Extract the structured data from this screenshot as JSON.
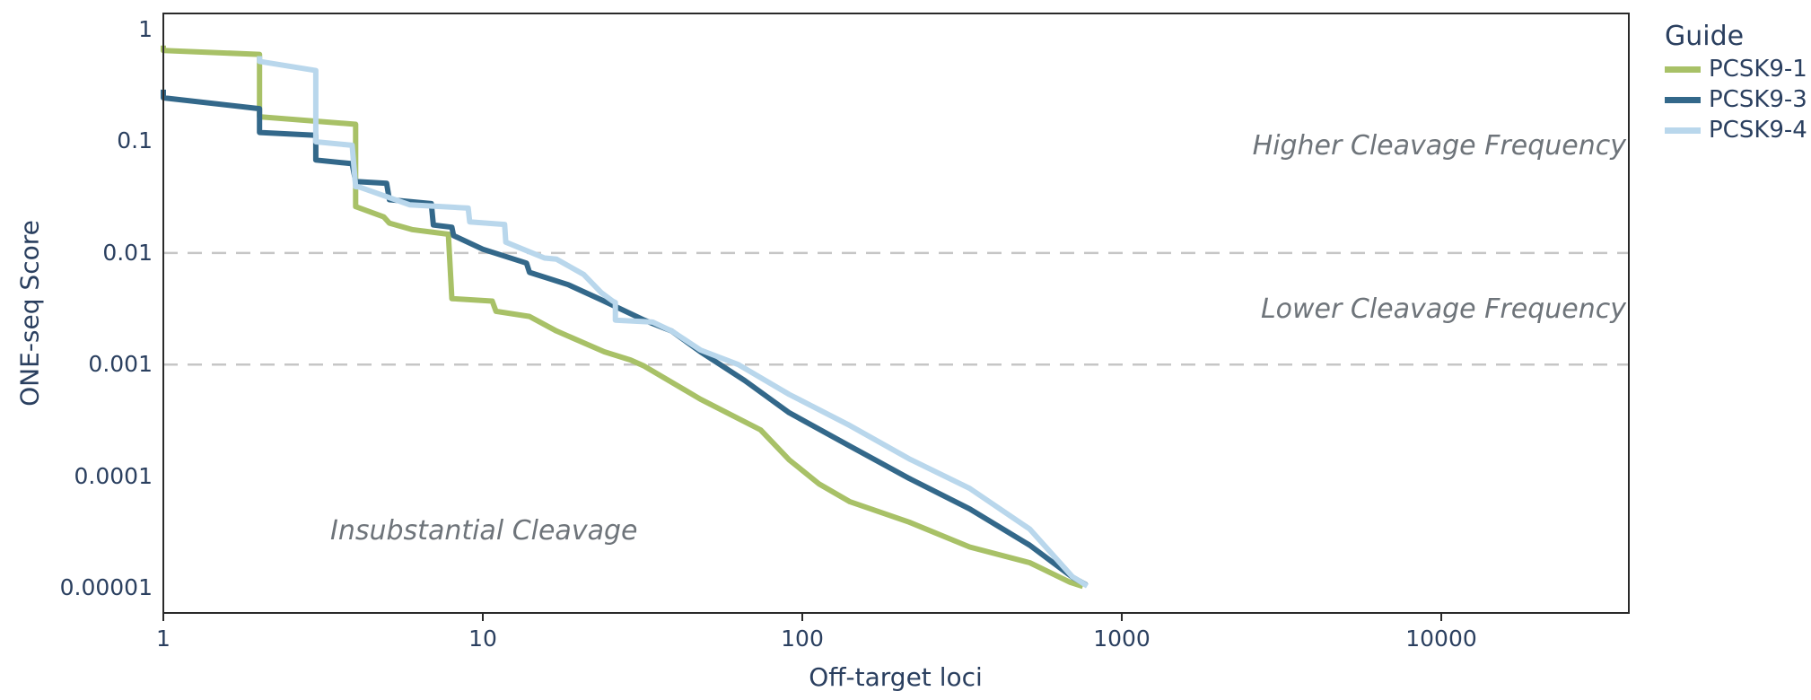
{
  "chart_data": {
    "type": "line",
    "title": "",
    "xlabel": "Off-target loci",
    "ylabel": "ONE-seq Score",
    "xscale": "log",
    "yscale": "log",
    "xlim_log": [
      0,
      4.587
    ],
    "ylim_log": [
      -5.225,
      0.145
    ],
    "grid": "off",
    "xticks": [
      {
        "value": 1,
        "label": "1"
      },
      {
        "value": 10,
        "label": "10"
      },
      {
        "value": 100,
        "label": "100"
      },
      {
        "value": 1000,
        "label": "1000"
      },
      {
        "value": 10000,
        "label": "10000"
      }
    ],
    "yticks": [
      {
        "value": 1,
        "label": "1"
      },
      {
        "value": 0.1,
        "label": "0.1"
      },
      {
        "value": 0.01,
        "label": "0.01"
      },
      {
        "value": 0.001,
        "label": "0.001"
      },
      {
        "value": 0.0001,
        "label": "0.0001"
      },
      {
        "value": 1e-05,
        "label": "0.00001"
      }
    ],
    "reference_lines": [
      {
        "y": 0.01,
        "style": "dashed",
        "color": "#c6c6c6"
      },
      {
        "y": 0.001,
        "style": "dashed",
        "color": "#c6c6c6"
      }
    ],
    "annotations": [
      {
        "text": "Higher Cleavage Frequency",
        "region": "above 0.01 line, right side"
      },
      {
        "text": "Lower Cleavage Frequency",
        "region": "between 0.01 and 0.001 lines, right side"
      },
      {
        "text": "Insubstantial Cleavage",
        "region": "below 0.001 line, left side"
      }
    ],
    "legend": {
      "title": "Guide",
      "position": "top-right-outside"
    },
    "colors": {
      "text": "#2a3f5f",
      "annotation": "#6e747a",
      "axis_line": "#2a2a2a",
      "reference_line": "#c6c6c6",
      "background": "#ffffff"
    },
    "series": [
      {
        "name": "PCSK9-1",
        "color": "#a8c167",
        "points": [
          [
            1,
            0.72
          ],
          [
            1,
            0.65
          ],
          [
            2,
            0.6
          ],
          [
            2,
            0.166
          ],
          [
            4,
            0.142
          ],
          [
            4,
            0.026
          ],
          [
            4.9,
            0.021
          ],
          [
            5.1,
            0.0185
          ],
          [
            6,
            0.0162
          ],
          [
            7.8,
            0.0147
          ],
          [
            8,
            0.0039
          ],
          [
            10.7,
            0.0037
          ],
          [
            11,
            0.003
          ],
          [
            14,
            0.0027
          ],
          [
            17,
            0.002
          ],
          [
            24,
            0.0013
          ],
          [
            29,
            0.0011
          ],
          [
            32,
            0.00097
          ],
          [
            48,
            0.00049
          ],
          [
            74,
            0.00026
          ],
          [
            91,
            0.00014
          ],
          [
            113,
            8.5e-05
          ],
          [
            141,
            5.9e-05
          ],
          [
            216,
            3.88e-05
          ],
          [
            334,
            2.32e-05
          ],
          [
            515,
            1.68e-05
          ],
          [
            690,
            1.12e-05
          ],
          [
            755,
            1.03e-05
          ]
        ]
      },
      {
        "name": "PCSK9-3",
        "color": "#33688a",
        "points": [
          [
            1,
            0.29
          ],
          [
            1,
            0.245
          ],
          [
            2,
            0.196
          ],
          [
            2,
            0.12
          ],
          [
            3,
            0.113
          ],
          [
            3,
            0.068
          ],
          [
            3.9,
            0.063
          ],
          [
            4,
            0.0437
          ],
          [
            5,
            0.042
          ],
          [
            5.1,
            0.03
          ],
          [
            6.9,
            0.0277
          ],
          [
            7,
            0.0178
          ],
          [
            8,
            0.017
          ],
          [
            8.1,
            0.0143
          ],
          [
            10,
            0.0108
          ],
          [
            13.7,
            0.0081
          ],
          [
            14,
            0.0067
          ],
          [
            18.5,
            0.0052
          ],
          [
            23.5,
            0.0038
          ],
          [
            32,
            0.0025
          ],
          [
            39,
            0.002
          ],
          [
            48,
            0.0013
          ],
          [
            66,
            0.00072
          ],
          [
            91,
            0.00037
          ],
          [
            141,
            0.000186
          ],
          [
            216,
            9.55e-05
          ],
          [
            334,
            5.09e-05
          ],
          [
            515,
            2.41e-05
          ],
          [
            700,
            1.25e-05
          ],
          [
            775,
            1.06e-05
          ]
        ]
      },
      {
        "name": "PCSK9-4",
        "color": "#b9d7ec",
        "points": [
          [
            2,
            0.58
          ],
          [
            2,
            0.52
          ],
          [
            3,
            0.43
          ],
          [
            3,
            0.099
          ],
          [
            3.9,
            0.092
          ],
          [
            4,
            0.0392
          ],
          [
            4.1,
            0.039
          ],
          [
            5.9,
            0.027
          ],
          [
            9,
            0.0252
          ],
          [
            9.1,
            0.019
          ],
          [
            11.7,
            0.018
          ],
          [
            11.8,
            0.0125
          ],
          [
            15.6,
            0.009
          ],
          [
            17,
            0.0088
          ],
          [
            20.7,
            0.0064
          ],
          [
            23.5,
            0.0044
          ],
          [
            25.5,
            0.0037
          ],
          [
            26,
            0.0036
          ],
          [
            26,
            0.0025
          ],
          [
            34,
            0.0024
          ],
          [
            39,
            0.002
          ],
          [
            48,
            0.00135
          ],
          [
            63,
            0.001
          ],
          [
            91,
            0.00054
          ],
          [
            141,
            0.000284
          ],
          [
            216,
            0.000143
          ],
          [
            334,
            7.77e-05
          ],
          [
            515,
            3.36e-05
          ],
          [
            700,
            1.26e-05
          ],
          [
            780,
            1.04e-05
          ]
        ]
      }
    ]
  }
}
